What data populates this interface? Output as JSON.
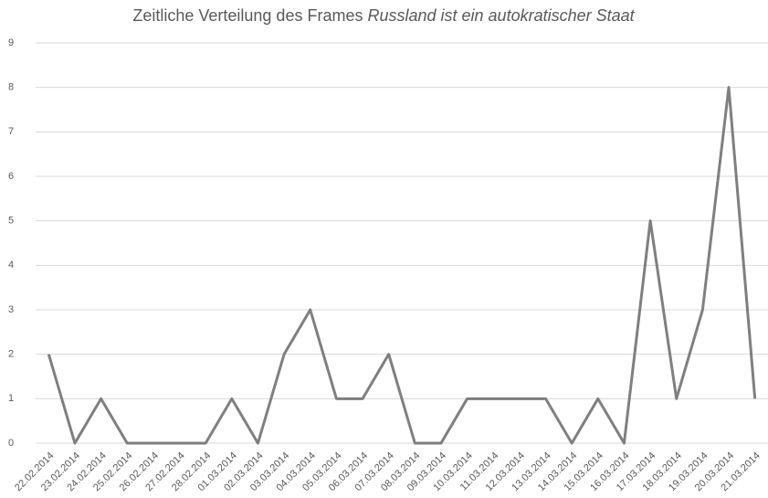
{
  "chart_data": {
    "type": "line",
    "title": "Zeitliche Verteilung des Frames",
    "title_emphasis": "Russland ist ein autokratischer Staat",
    "categories": [
      "22.02.2014",
      "23.02.2014",
      "24.02.2014",
      "25.02.2014",
      "26.02.2014",
      "27.02.2014",
      "28.02.2014",
      "01.03.2014",
      "02.03.2014",
      "03.03.2014",
      "04.03.2014",
      "05.03.2014",
      "06.03.2014",
      "07.03.2014",
      "08.03.2014",
      "09.03.2014",
      "10.03.2014",
      "11.03.2014",
      "12.03.2014",
      "13.03.2014",
      "14.03.2014",
      "15.03.2014",
      "16.03.2014",
      "17.03.2014",
      "18.03.2014",
      "19.03.2014",
      "20.03.2014",
      "21.03.2014"
    ],
    "values": [
      2,
      0,
      1,
      0,
      0,
      0,
      0,
      1,
      0,
      2,
      3,
      1,
      1,
      2,
      0,
      0,
      1,
      1,
      1,
      1,
      0,
      1,
      0,
      5,
      1,
      3,
      8,
      1
    ],
    "color": "#7f7f7f",
    "ylim": [
      0,
      9
    ],
    "yticks": [
      0,
      1,
      2,
      3,
      4,
      5,
      6,
      7,
      8,
      9
    ],
    "grid": true
  }
}
